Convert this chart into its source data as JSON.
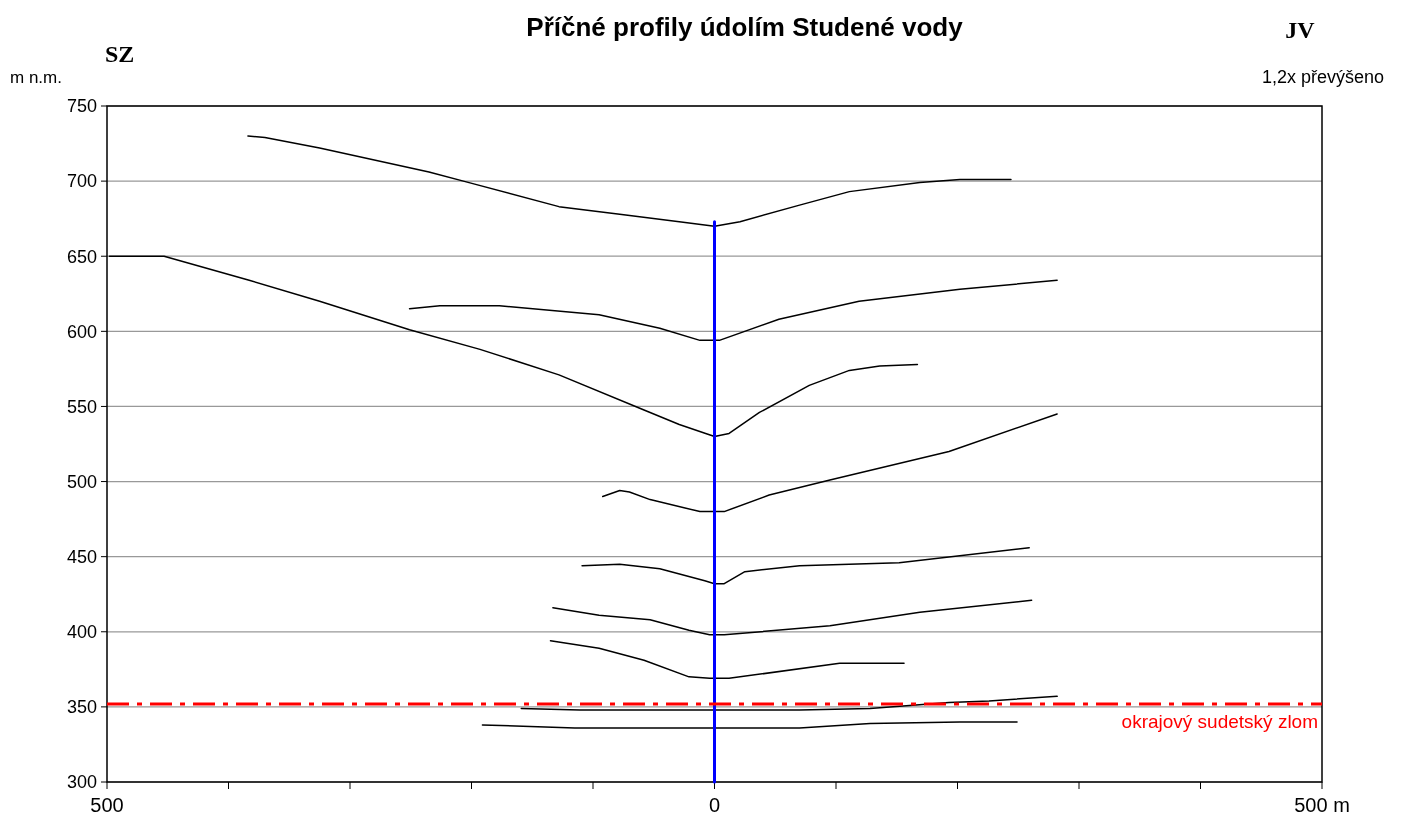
{
  "chart_data": {
    "type": "line",
    "title": "Příčné profily údolím Studené vody",
    "ylabel": "m n.m.",
    "annotations": [
      "SZ",
      "JV",
      "1,2x převýšeno"
    ],
    "xlim": [
      -500,
      500
    ],
    "xticks": [
      {
        "value": -500,
        "label": "500"
      },
      {
        "value": -400,
        "label": null
      },
      {
        "value": -300,
        "label": null
      },
      {
        "value": -200,
        "label": null
      },
      {
        "value": -100,
        "label": null
      },
      0,
      {
        "value": 100,
        "label": null
      },
      {
        "value": 200,
        "label": null
      },
      {
        "value": 300,
        "label": null
      },
      {
        "value": 400,
        "label": null
      },
      {
        "value": 500,
        "label": "500 m"
      }
    ],
    "ylim": [
      300,
      750
    ],
    "yticks": [
      300,
      350,
      400,
      450,
      500,
      550,
      600,
      650,
      700,
      750
    ],
    "grid": "y",
    "line_style": "solid",
    "ref_lines": [
      {
        "axis": "y",
        "value": 352,
        "label": "okrajový sudetský zlom",
        "color": "#ff0000",
        "line_style": "dashed"
      }
    ],
    "series": [
      {
        "color": "#000000",
        "x": [
          -384,
          -370,
          -325,
          -235,
          -202,
          -128,
          -78,
          -29,
          0,
          21,
          70,
          111,
          169,
          202,
          244
        ],
        "values": [
          730,
          729,
          722,
          706,
          699,
          683,
          678,
          673,
          670,
          673,
          684,
          693,
          699,
          701,
          701
        ]
      },
      {
        "color": "#000000",
        "x": [
          -498,
          -453,
          -383,
          -325,
          -251,
          -193,
          -128,
          -62,
          -29,
          0,
          12,
          37,
          78,
          111,
          136,
          167
        ],
        "values": [
          650,
          650,
          634,
          620,
          601,
          588,
          571,
          549,
          538,
          530,
          532,
          546,
          564,
          574,
          577,
          578
        ]
      },
      {
        "color": "#000000",
        "x": [
          -251,
          -226,
          -177,
          -95,
          -45,
          -12,
          4,
          53,
          119,
          202,
          282
        ],
        "values": [
          615,
          617,
          617,
          611,
          602,
          594,
          594,
          608,
          620,
          628,
          634
        ]
      },
      {
        "color": "#000000",
        "x": [
          -92,
          -78,
          -70,
          -53,
          -12,
          8,
          45,
          95,
          193,
          282
        ],
        "values": [
          490,
          494,
          493,
          488,
          480,
          480,
          491,
          501,
          520,
          545
        ]
      },
      {
        "color": "#000000",
        "x": [
          -109,
          -78,
          -45,
          -8,
          0,
          8,
          25,
          70,
          152,
          259
        ],
        "values": [
          444,
          445,
          442,
          434,
          432,
          432,
          440,
          444,
          446,
          456
        ]
      },
      {
        "color": "#000000",
        "x": [
          -133,
          -95,
          -53,
          -21,
          -4,
          8,
          95,
          169,
          261
        ],
        "values": [
          416,
          411,
          408,
          401,
          398,
          398,
          404,
          413,
          421
        ]
      },
      {
        "color": "#000000",
        "x": [
          -135,
          -95,
          -58,
          -21,
          -4,
          12,
          103,
          156
        ],
        "values": [
          394,
          389,
          381,
          370,
          369,
          369,
          379,
          379
        ]
      },
      {
        "color": "#000000",
        "x": [
          -159,
          -111,
          70,
          128,
          193,
          226,
          282
        ],
        "values": [
          349,
          348,
          348,
          349,
          353,
          354,
          357
        ]
      },
      {
        "color": "#000000",
        "x": [
          -191,
          -115,
          70,
          128,
          202,
          249
        ],
        "values": [
          338,
          336,
          336,
          339,
          340,
          340
        ]
      },
      {
        "color": "#0000ff",
        "x": [
          0,
          0
        ],
        "values": [
          300,
          673
        ]
      }
    ]
  }
}
